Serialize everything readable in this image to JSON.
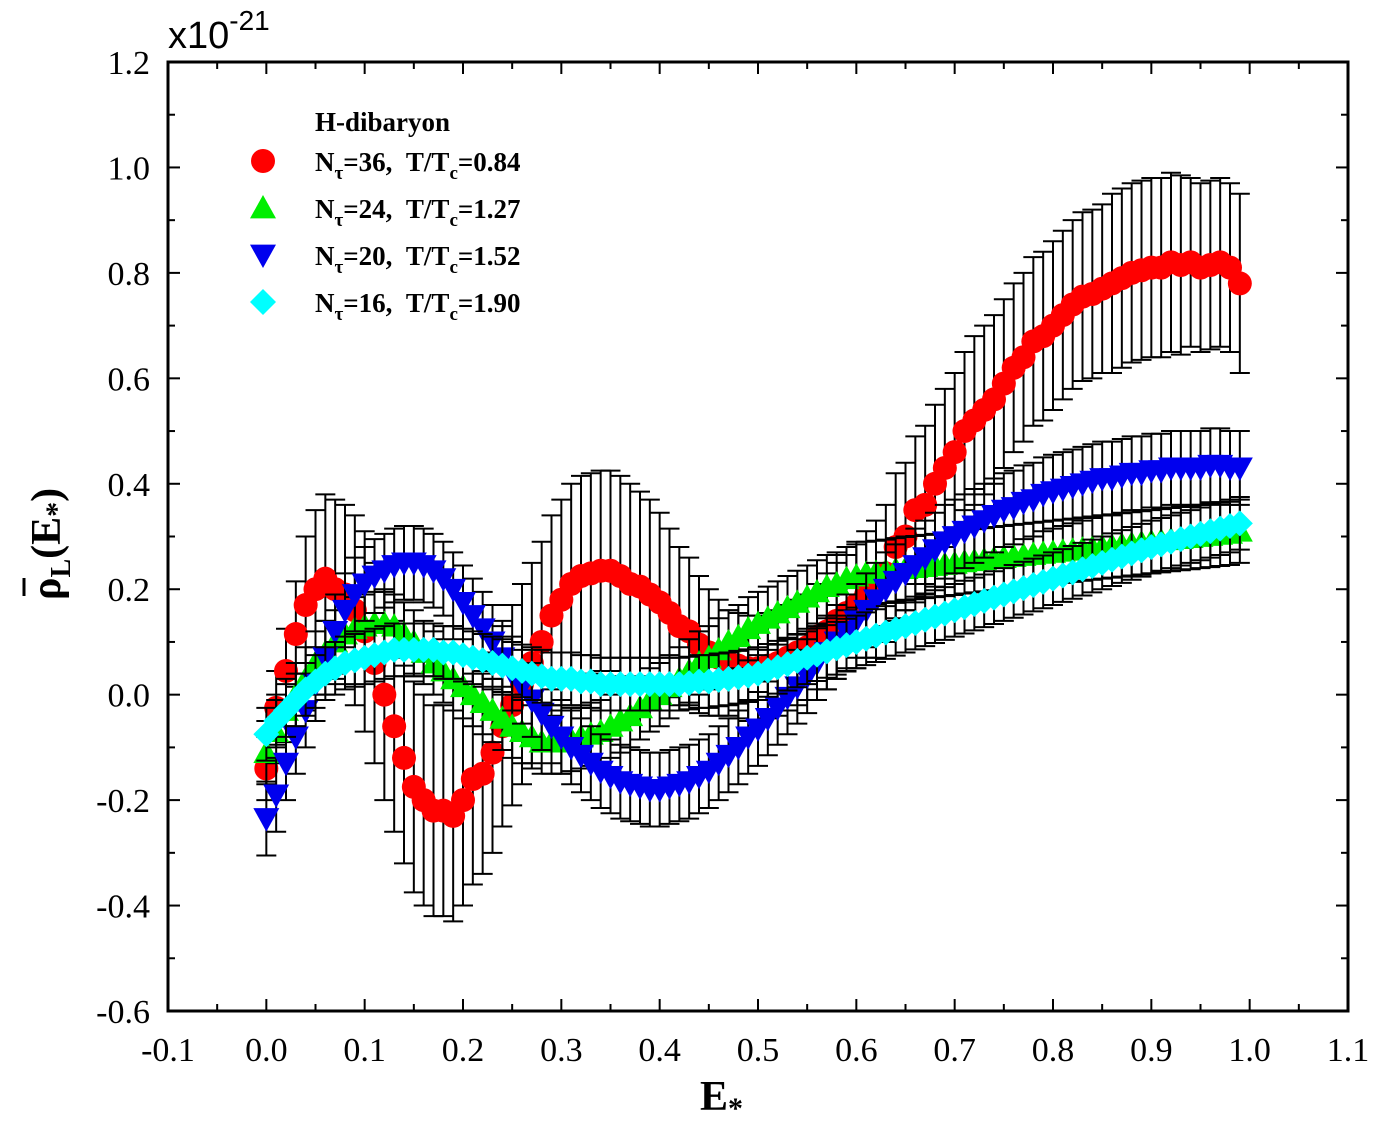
{
  "chart_data": {
    "type": "scatter",
    "multiplier": {
      "base": "x10",
      "exponent": "-21"
    },
    "xlabel": {
      "main": "E",
      "sub": "*"
    },
    "ylabel": {
      "main": "ρ",
      "sub": "L",
      "open": "(E",
      "sub2": "*",
      "close": ")"
    },
    "xlim": [
      -0.1,
      1.1
    ],
    "ylim": [
      -0.6,
      1.2
    ],
    "xticks": [
      "-0.1",
      "0.0",
      "0.1",
      "0.2",
      "0.3",
      "0.4",
      "0.5",
      "0.6",
      "0.7",
      "0.8",
      "0.9",
      "1.0",
      "1.1"
    ],
    "yticks": [
      "-0.6",
      "-0.4",
      "-0.2",
      "0.0",
      "0.2",
      "0.4",
      "0.6",
      "0.8",
      "1.0",
      "1.2"
    ],
    "legend": {
      "title": "H-dibaryon",
      "placement": "top-left"
    },
    "x_start": 0.0,
    "x_step": 0.01,
    "series": [
      {
        "name": "Nτ=36, T/Tc=0.84",
        "label": {
          "n": "N",
          "n_sub": "τ",
          "n_val": "=36,",
          "t": "T/T",
          "t_sub": "c",
          "t_val": "=0.84"
        },
        "color": "#ff0000",
        "marker": "circle",
        "values": [
          -0.14,
          -0.025,
          0.045,
          0.115,
          0.17,
          0.2,
          0.22,
          0.2,
          0.19,
          0.16,
          0.12,
          0.06,
          0.0,
          -0.06,
          -0.12,
          -0.175,
          -0.2,
          -0.22,
          -0.22,
          -0.23,
          -0.2,
          -0.16,
          -0.15,
          -0.11,
          -0.06,
          -0.02,
          0.02,
          0.06,
          0.1,
          0.15,
          0.18,
          0.21,
          0.225,
          0.23,
          0.235,
          0.235,
          0.225,
          0.21,
          0.205,
          0.19,
          0.175,
          0.155,
          0.13,
          0.12,
          0.095,
          0.08,
          0.07,
          0.06,
          0.055,
          0.05,
          0.05,
          0.055,
          0.06,
          0.07,
          0.08,
          0.09,
          0.11,
          0.12,
          0.14,
          0.155,
          0.17,
          0.19,
          0.2,
          0.23,
          0.28,
          0.3,
          0.35,
          0.36,
          0.4,
          0.43,
          0.46,
          0.5,
          0.52,
          0.54,
          0.56,
          0.59,
          0.62,
          0.64,
          0.67,
          0.68,
          0.7,
          0.72,
          0.74,
          0.755,
          0.76,
          0.77,
          0.78,
          0.79,
          0.8,
          0.805,
          0.81,
          0.81,
          0.82,
          0.815,
          0.82,
          0.81,
          0.815,
          0.82,
          0.81,
          0.78
        ],
        "errors": [
          0.06,
          0.07,
          0.08,
          0.1,
          0.13,
          0.15,
          0.16,
          0.17,
          0.17,
          0.18,
          0.19,
          0.19,
          0.2,
          0.2,
          0.2,
          0.2,
          0.2,
          0.2,
          0.2,
          0.2,
          0.2,
          0.2,
          0.19,
          0.19,
          0.19,
          0.19,
          0.19,
          0.19,
          0.19,
          0.19,
          0.19,
          0.19,
          0.19,
          0.19,
          0.19,
          0.19,
          0.19,
          0.19,
          0.18,
          0.18,
          0.17,
          0.16,
          0.15,
          0.14,
          0.13,
          0.12,
          0.11,
          0.1,
          0.1,
          0.1,
          0.1,
          0.1,
          0.1,
          0.1,
          0.1,
          0.1,
          0.1,
          0.11,
          0.11,
          0.11,
          0.12,
          0.12,
          0.13,
          0.13,
          0.14,
          0.14,
          0.14,
          0.15,
          0.15,
          0.15,
          0.15,
          0.15,
          0.16,
          0.16,
          0.16,
          0.16,
          0.16,
          0.16,
          0.16,
          0.16,
          0.16,
          0.16,
          0.16,
          0.16,
          0.16,
          0.16,
          0.17,
          0.17,
          0.17,
          0.17,
          0.17,
          0.17,
          0.17,
          0.17,
          0.16,
          0.16,
          0.16,
          0.16,
          0.16,
          0.17
        ]
      },
      {
        "name": "Nτ=24, T/Tc=1.27",
        "label": {
          "n": "N",
          "n_sub": "τ",
          "n_val": "=24,",
          "t": "T/T",
          "t_sub": "c",
          "t_val": "=1.27"
        },
        "color": "#00ee00",
        "marker": "triangle-up",
        "values": [
          -0.11,
          -0.07,
          -0.03,
          0.0,
          0.03,
          0.06,
          0.08,
          0.1,
          0.115,
          0.125,
          0.13,
          0.135,
          0.135,
          0.13,
          0.115,
          0.1,
          0.08,
          0.06,
          0.045,
          0.03,
          0.015,
          0.0,
          -0.015,
          -0.03,
          -0.045,
          -0.06,
          -0.07,
          -0.08,
          -0.09,
          -0.09,
          -0.09,
          -0.085,
          -0.08,
          -0.075,
          -0.07,
          -0.06,
          -0.05,
          -0.04,
          -0.025,
          -0.01,
          0.0,
          0.015,
          0.03,
          0.045,
          0.06,
          0.07,
          0.085,
          0.1,
          0.11,
          0.125,
          0.135,
          0.145,
          0.155,
          0.165,
          0.175,
          0.185,
          0.195,
          0.205,
          0.21,
          0.22,
          0.225,
          0.23,
          0.232,
          0.234,
          0.237,
          0.239,
          0.241,
          0.243,
          0.245,
          0.247,
          0.249,
          0.252,
          0.254,
          0.256,
          0.258,
          0.26,
          0.262,
          0.264,
          0.266,
          0.268,
          0.27,
          0.272,
          0.274,
          0.276,
          0.278,
          0.28,
          0.282,
          0.284,
          0.286,
          0.288,
          0.29,
          0.292,
          0.294,
          0.296,
          0.298,
          0.3,
          0.302,
          0.304,
          0.306,
          0.31
        ],
        "errors": 0.06
      },
      {
        "name": "Nτ=20, T/Tc=1.52",
        "label": {
          "n": "N",
          "n_sub": "τ",
          "n_val": "=20,",
          "t": "T/T",
          "t_sub": "c",
          "t_val": "=1.52"
        },
        "color": "#0000ee",
        "marker": "triangle-down",
        "values": [
          -0.235,
          -0.19,
          -0.13,
          -0.08,
          -0.03,
          0.02,
          0.07,
          0.12,
          0.16,
          0.19,
          0.21,
          0.225,
          0.235,
          0.245,
          0.25,
          0.25,
          0.245,
          0.235,
          0.22,
          0.2,
          0.175,
          0.15,
          0.125,
          0.1,
          0.07,
          0.04,
          0.015,
          -0.01,
          -0.035,
          -0.06,
          -0.08,
          -0.1,
          -0.115,
          -0.13,
          -0.145,
          -0.155,
          -0.165,
          -0.17,
          -0.175,
          -0.18,
          -0.18,
          -0.175,
          -0.17,
          -0.165,
          -0.155,
          -0.145,
          -0.13,
          -0.115,
          -0.1,
          -0.08,
          -0.065,
          -0.045,
          -0.025,
          -0.005,
          0.015,
          0.035,
          0.06,
          0.08,
          0.1,
          0.12,
          0.14,
          0.16,
          0.18,
          0.2,
          0.215,
          0.23,
          0.245,
          0.26,
          0.275,
          0.29,
          0.3,
          0.31,
          0.32,
          0.33,
          0.34,
          0.35,
          0.355,
          0.365,
          0.37,
          0.38,
          0.385,
          0.39,
          0.395,
          0.4,
          0.405,
          0.41,
          0.41,
          0.415,
          0.42,
          0.42,
          0.425,
          0.425,
          0.43,
          0.43,
          0.43,
          0.43,
          0.435,
          0.435,
          0.43,
          0.43
        ],
        "errors": 0.07
      },
      {
        "name": "Nτ=16, T/Tc=1.90",
        "label": {
          "n": "N",
          "n_sub": "τ",
          "n_val": "=16,",
          "t": "T/T",
          "t_sub": "c",
          "t_val": "=1.90"
        },
        "color": "#00ffff",
        "marker": "diamond",
        "values": [
          -0.075,
          -0.05,
          -0.03,
          -0.01,
          0.01,
          0.025,
          0.04,
          0.05,
          0.06,
          0.065,
          0.07,
          0.075,
          0.08,
          0.085,
          0.085,
          0.085,
          0.085,
          0.085,
          0.08,
          0.08,
          0.075,
          0.07,
          0.065,
          0.06,
          0.055,
          0.05,
          0.045,
          0.04,
          0.035,
          0.03,
          0.03,
          0.03,
          0.025,
          0.025,
          0.02,
          0.02,
          0.02,
          0.02,
          0.02,
          0.02,
          0.02,
          0.02,
          0.02,
          0.022,
          0.025,
          0.025,
          0.028,
          0.03,
          0.033,
          0.036,
          0.04,
          0.046,
          0.052,
          0.058,
          0.064,
          0.07,
          0.076,
          0.082,
          0.088,
          0.094,
          0.1,
          0.106,
          0.112,
          0.118,
          0.124,
          0.13,
          0.136,
          0.142,
          0.148,
          0.154,
          0.16,
          0.166,
          0.172,
          0.178,
          0.184,
          0.19,
          0.196,
          0.202,
          0.208,
          0.214,
          0.22,
          0.226,
          0.232,
          0.238,
          0.244,
          0.25,
          0.256,
          0.262,
          0.268,
          0.274,
          0.28,
          0.285,
          0.29,
          0.295,
          0.3,
          0.305,
          0.31,
          0.315,
          0.32,
          0.325
        ],
        "errors": 0.05
      }
    ]
  }
}
